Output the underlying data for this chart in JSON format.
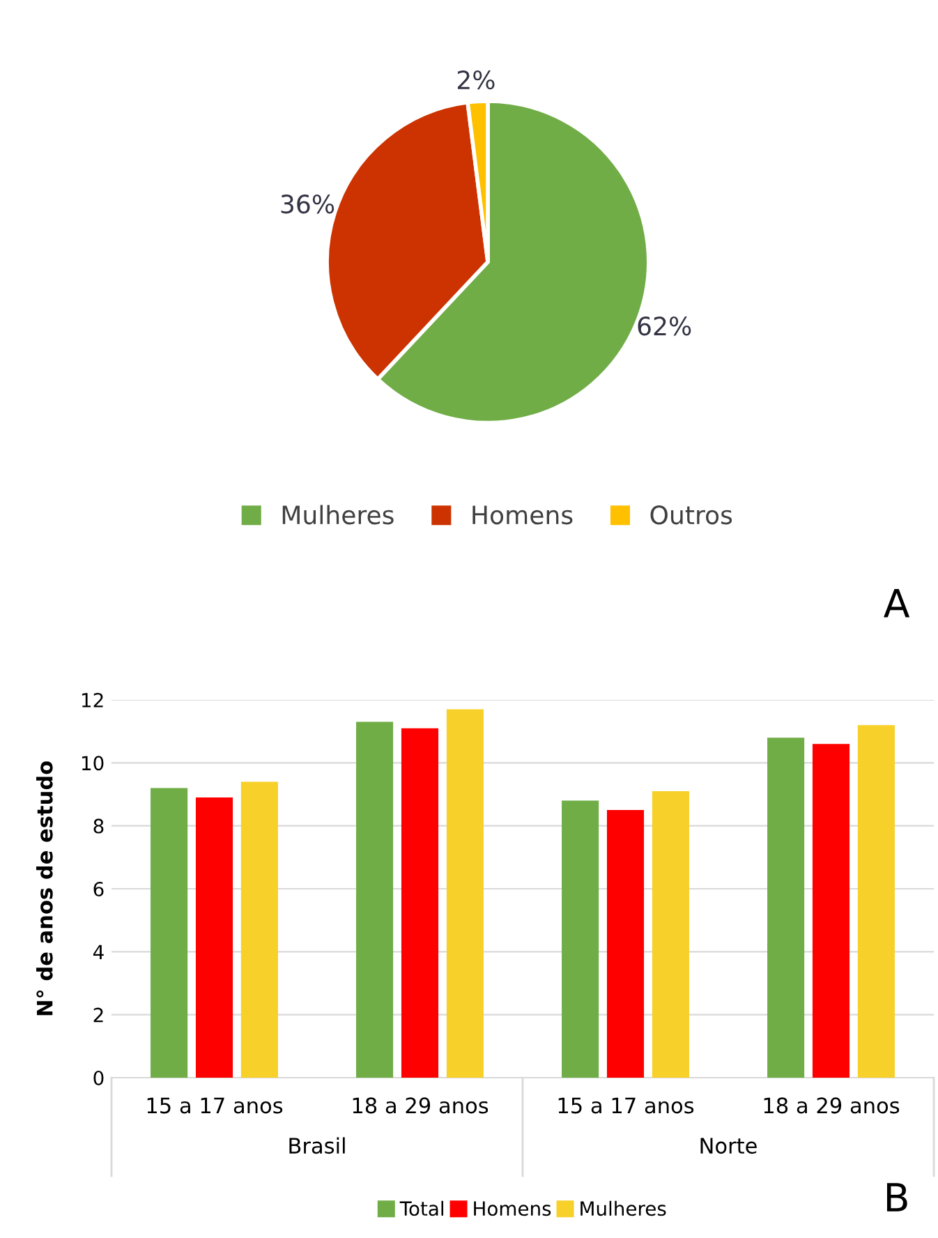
{
  "chart_data": [
    {
      "type": "pie",
      "categories": [
        "Mulheres",
        "Homens",
        "Outros"
      ],
      "values": [
        62,
        36,
        2
      ],
      "colors": [
        "#70ad47",
        "#cc3300",
        "#ffc000"
      ],
      "value_labels": [
        "62%",
        "36%",
        "2%"
      ],
      "legend": "bottom",
      "annotations": [
        "A"
      ]
    },
    {
      "type": "bar",
      "ylabel": "N° de anos de estudo",
      "categories": [
        "15 a 17 anos",
        "18 a 29 anos",
        "15 a 17 anos",
        "18 a 29 anos"
      ],
      "series": [
        {
          "name": "Total",
          "color": "#70ad47",
          "values": [
            9.2,
            11.3,
            8.8,
            10.8
          ]
        },
        {
          "name": "Homens",
          "color": "#ff0000",
          "values": [
            8.9,
            11.1,
            8.5,
            10.6
          ]
        },
        {
          "name": "Mulheres",
          "color": "#f8d02a",
          "values": [
            9.4,
            11.7,
            9.1,
            11.2
          ]
        }
      ],
      "ylim": [
        0,
        12
      ],
      "yticks": [
        0,
        2,
        4,
        6,
        8,
        10,
        12
      ],
      "grid": "y",
      "legend": "bottom",
      "annotations": [
        "Brasil",
        "Norte",
        "B"
      ]
    }
  ]
}
